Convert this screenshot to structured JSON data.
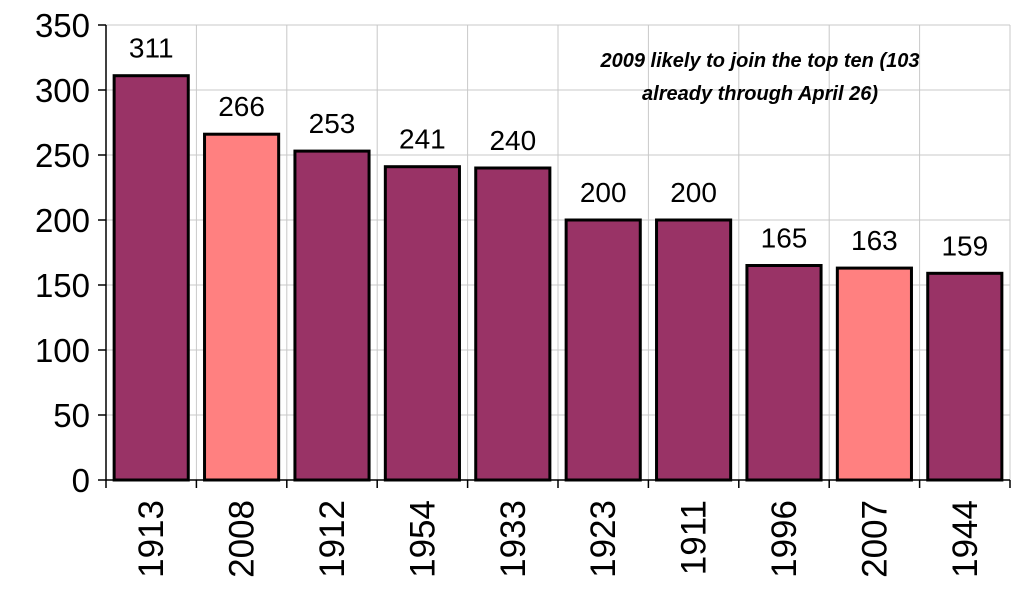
{
  "chart_data": {
    "type": "bar",
    "categories": [
      "1913",
      "2008",
      "1912",
      "1954",
      "1933",
      "1923",
      "1911",
      "1996",
      "2007",
      "1944"
    ],
    "values": [
      311,
      266,
      253,
      241,
      240,
      200,
      200,
      165,
      163,
      159
    ],
    "data_labels": [
      "311",
      "266",
      "253",
      "241",
      "240",
      "200",
      "200",
      "165",
      "163",
      "159"
    ],
    "bar_colors": [
      "#993366",
      "#ff8080",
      "#993366",
      "#993366",
      "#993366",
      "#993366",
      "#993366",
      "#993366",
      "#ff8080",
      "#993366"
    ],
    "ylim": [
      0,
      350
    ],
    "yticks": [
      0,
      50,
      100,
      150,
      200,
      250,
      300,
      350
    ],
    "grid": true,
    "annotation": {
      "line1": "2009 likely to join the top ten (103",
      "line2": "already through April 26)"
    }
  }
}
